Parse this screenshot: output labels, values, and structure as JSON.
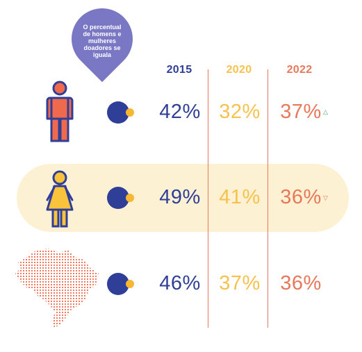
{
  "callout": {
    "text": "O percentual de homens e mulheres doadores se iguala"
  },
  "colors": {
    "navy": "#2f3e96",
    "yellow": "#f7c14e",
    "orange": "#e8785a",
    "purple": "#7a77c4",
    "band": "#fdf1d3",
    "green": "#3aa879",
    "male_fig": "#ef6a4c",
    "female_fig": "#f9c43b",
    "outline": "#2f3e96"
  },
  "chart_data": {
    "type": "table",
    "columns": [
      "2015",
      "2020",
      "2022"
    ],
    "rows": [
      {
        "icon": "man-icon",
        "values": [
          "42%",
          "32%",
          "37%"
        ],
        "trend": "up"
      },
      {
        "icon": "woman-icon",
        "values": [
          "49%",
          "41%",
          "36%"
        ],
        "trend": "down"
      },
      {
        "icon": "brazil-map-icon",
        "values": [
          "46%",
          "37%",
          "36%"
        ],
        "trend": ""
      }
    ]
  }
}
